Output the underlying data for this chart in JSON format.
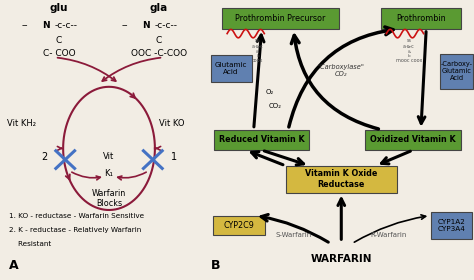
{
  "bg_color": "#f2ede4",
  "panel_A": {
    "glu_label": "glu",
    "gla_label": "gla",
    "circle_color": "#8b1a3a",
    "cross_color": "#4472c4",
    "notes": [
      "1. KO - reductase - Warfarin Sensitive",
      "2. K - reductase - Relatively Warfarin",
      "    Resistant"
    ],
    "label": "A"
  },
  "panel_B": {
    "label": "B",
    "green_color": "#5a9a32",
    "blue_color": "#6080b0",
    "yellow_color": "#d4b840",
    "green_box_border": "#3a7a12",
    "blue_box_border": "#405090",
    "yellow_box_border": "#a09020"
  }
}
